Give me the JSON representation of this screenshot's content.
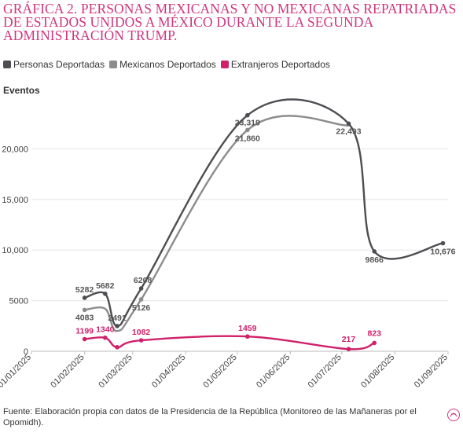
{
  "title": "Gráfica 2. Personas mexicanas y no mexicanas repatriadas de Estados Unidos a México durante la segunda administración Trump.",
  "legend": [
    {
      "label": "Personas Deportadas",
      "color": "#4d4d52"
    },
    {
      "label": "Mexicanos Deportados",
      "color": "#8c8c8c"
    },
    {
      "label": "Extranjeros Deportados",
      "color": "#d0206a"
    }
  ],
  "source": "Fuente: Elaboración propia con datos de la Presidencia de la República (Monitoreo de las Mañaneras por el Opomidh).",
  "chart_data": {
    "type": "line",
    "ylabel": "Eventos",
    "xlabel": "",
    "ylim": [
      0,
      25000
    ],
    "yticks": [
      0,
      5000,
      10000,
      15000,
      20000
    ],
    "ytick_labels": [
      "0",
      "5000",
      "10,000",
      "15,000",
      "20,000"
    ],
    "xticks": [
      "2025-01-01",
      "2025-02-01",
      "2025-03-01",
      "2025-04-01",
      "2025-05-01",
      "2025-06-01",
      "2025-07-01",
      "2025-08-01",
      "2025-09-01"
    ],
    "xtick_labels": [
      "01/01/2025",
      "01/02/2025",
      "01/03/2025",
      "01/04/2025",
      "01/05/2025",
      "01/06/2025",
      "01/07/2025",
      "01/08/2025",
      "01/09/2025"
    ],
    "grid": "horizontal",
    "legend_position": "top-left",
    "series": [
      {
        "name": "Personas Deportadas",
        "color": "#4d4d52",
        "points": [
          {
            "x": "2025-02-01",
            "y": 5282,
            "label": "5282"
          },
          {
            "x": "2025-02-13",
            "y": 5682,
            "label": "5682"
          },
          {
            "x": "2025-02-20",
            "y": 2491,
            "label": "2491"
          },
          {
            "x": "2025-03-06",
            "y": 6208,
            "label": "6208"
          },
          {
            "x": "2025-05-07",
            "y": 23319,
            "label": "23,319"
          },
          {
            "x": "2025-07-05",
            "y": 22493,
            "label": "22,493"
          },
          {
            "x": "2025-07-20",
            "y": 9866,
            "label": "9866"
          },
          {
            "x": "2025-08-29",
            "y": 10676,
            "label": "10,676"
          }
        ]
      },
      {
        "name": "Mexicanos Deportados",
        "color": "#8c8c8c",
        "points": [
          {
            "x": "2025-02-01",
            "y": 4083,
            "label": "4083"
          },
          {
            "x": "2025-02-13",
            "y": 4200,
            "label": ""
          },
          {
            "x": "2025-02-20",
            "y": 2000,
            "label": ""
          },
          {
            "x": "2025-03-06",
            "y": 5126,
            "label": "5126"
          },
          {
            "x": "2025-05-07",
            "y": 21860,
            "label": "21,860"
          },
          {
            "x": "2025-07-05",
            "y": 22300,
            "label": ""
          }
        ]
      },
      {
        "name": "Extranjeros Deportados",
        "color": "#d0206a",
        "points": [
          {
            "x": "2025-02-01",
            "y": 1199,
            "label": "1199"
          },
          {
            "x": "2025-02-13",
            "y": 1340,
            "label": "1340"
          },
          {
            "x": "2025-02-20",
            "y": 400,
            "label": ""
          },
          {
            "x": "2025-03-06",
            "y": 1082,
            "label": "1082"
          },
          {
            "x": "2025-05-07",
            "y": 1459,
            "label": "1459"
          },
          {
            "x": "2025-07-05",
            "y": 217,
            "label": "217"
          },
          {
            "x": "2025-07-20",
            "y": 823,
            "label": "823"
          }
        ]
      }
    ]
  }
}
